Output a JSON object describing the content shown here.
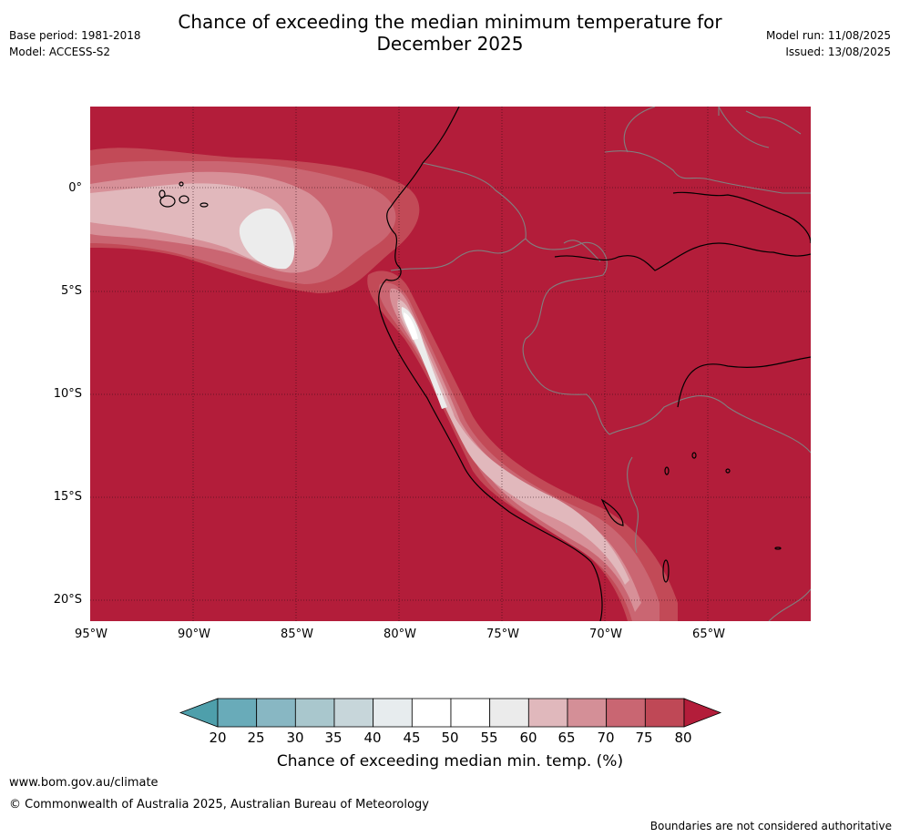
{
  "header": {
    "title_line1": "Chance of exceeding the median minimum temperature for",
    "title_line2": "December 2025",
    "base_period": "Base period: 1981-2018",
    "model": "Model: ACCESS-S2",
    "model_run": "Model run: 11/08/2025",
    "issued": "Issued: 13/08/2025"
  },
  "map": {
    "lat_labels": [
      "0°",
      "5°S",
      "10°S",
      "15°S",
      "20°S"
    ],
    "lon_labels": [
      "95°W",
      "90°W",
      "85°W",
      "80°W",
      "75°W",
      "70°W",
      "65°W"
    ],
    "colors": {
      "ocean_background": "#b31d3a",
      "band_75_80": "#c24a57",
      "band_70_75": "#ca6672",
      "band_65_70": "#d79098",
      "band_60_65": "#e1b8bc",
      "band_55_60": "#ececec",
      "band_50_55": "#ffffff",
      "coastline": "#000000",
      "border": "#808080"
    }
  },
  "colorbar": {
    "ticks": [
      "20",
      "25",
      "30",
      "35",
      "40",
      "45",
      "50",
      "55",
      "60",
      "65",
      "70",
      "75",
      "80"
    ],
    "colors": [
      "#69abb9",
      "#88b7c3",
      "#a9c7cd",
      "#c7d6da",
      "#e7ecee",
      "#ffffff",
      "#ffffff",
      "#ebebeb",
      "#e0b8bc",
      "#d48f97",
      "#c96672",
      "#bf4856"
    ],
    "low_extend_color": "#4e9fab",
    "high_extend_color": "#b31d3a",
    "title": "Chance of exceeding median min. temp. (%)"
  },
  "footer": {
    "url": "www.bom.gov.au/climate",
    "copyright": "© Commonwealth of Australia 2025, Australian Bureau of Meteorology",
    "disclaimer": "Boundaries are not considered authoritative"
  }
}
